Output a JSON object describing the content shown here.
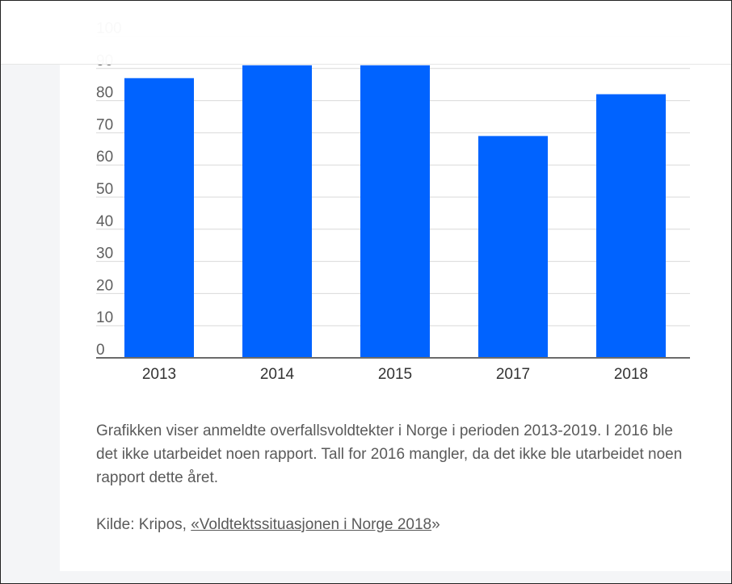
{
  "chart_data": {
    "type": "bar",
    "categories": [
      "2013",
      "2014",
      "2015",
      "2017",
      "2018"
    ],
    "values": [
      87,
      91,
      91,
      69,
      82
    ],
    "ylim": [
      0,
      100
    ],
    "yticks": [
      "0",
      "10",
      "20",
      "30",
      "40",
      "50",
      "60",
      "70",
      "80",
      "90",
      "100"
    ],
    "grid": true,
    "bar_color": "#0063ff",
    "grid_color": "#d9d9d9",
    "axis_color": "#6b6b6b",
    "title": "",
    "xlabel": "",
    "ylabel": ""
  },
  "caption": "Grafikken viser anmeldte overfallsvoldtekter i Norge i perioden 2013-2019. I 2016 ble det ikke utarbeidet noen rapport. Tall for 2016 mangler, da det ikke ble utarbeidet noen rapport dette året.",
  "source": {
    "prefix": "Kilde: Kripos, ",
    "link_text": "«Voldtektssituasjonen i Norge 2018",
    "suffix": "»"
  }
}
